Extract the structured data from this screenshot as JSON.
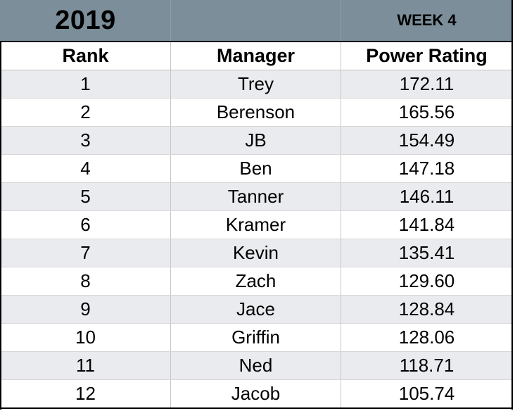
{
  "header": {
    "year": "2019",
    "middle": "",
    "week": "WEEK 4"
  },
  "columns": {
    "rank": "Rank",
    "manager": "Manager",
    "rating": "Power Rating"
  },
  "rows": [
    {
      "rank": "1",
      "manager": "Trey",
      "rating": "172.11"
    },
    {
      "rank": "2",
      "manager": "Berenson",
      "rating": "165.56"
    },
    {
      "rank": "3",
      "manager": "JB",
      "rating": "154.49"
    },
    {
      "rank": "4",
      "manager": "Ben",
      "rating": "147.18"
    },
    {
      "rank": "5",
      "manager": "Tanner",
      "rating": "146.11"
    },
    {
      "rank": "6",
      "manager": "Kramer",
      "rating": "141.84"
    },
    {
      "rank": "7",
      "manager": "Kevin",
      "rating": "135.41"
    },
    {
      "rank": "8",
      "manager": "Zach",
      "rating": "129.60"
    },
    {
      "rank": "9",
      "manager": "Jace",
      "rating": "128.84"
    },
    {
      "rank": "10",
      "manager": "Griffin",
      "rating": "128.06"
    },
    {
      "rank": "11",
      "manager": "Ned",
      "rating": "118.71"
    },
    {
      "rank": "12",
      "manager": "Jacob",
      "rating": "105.74"
    }
  ],
  "colors": {
    "title_band": "#7b8e9a",
    "stripe": "#e9ebee"
  }
}
